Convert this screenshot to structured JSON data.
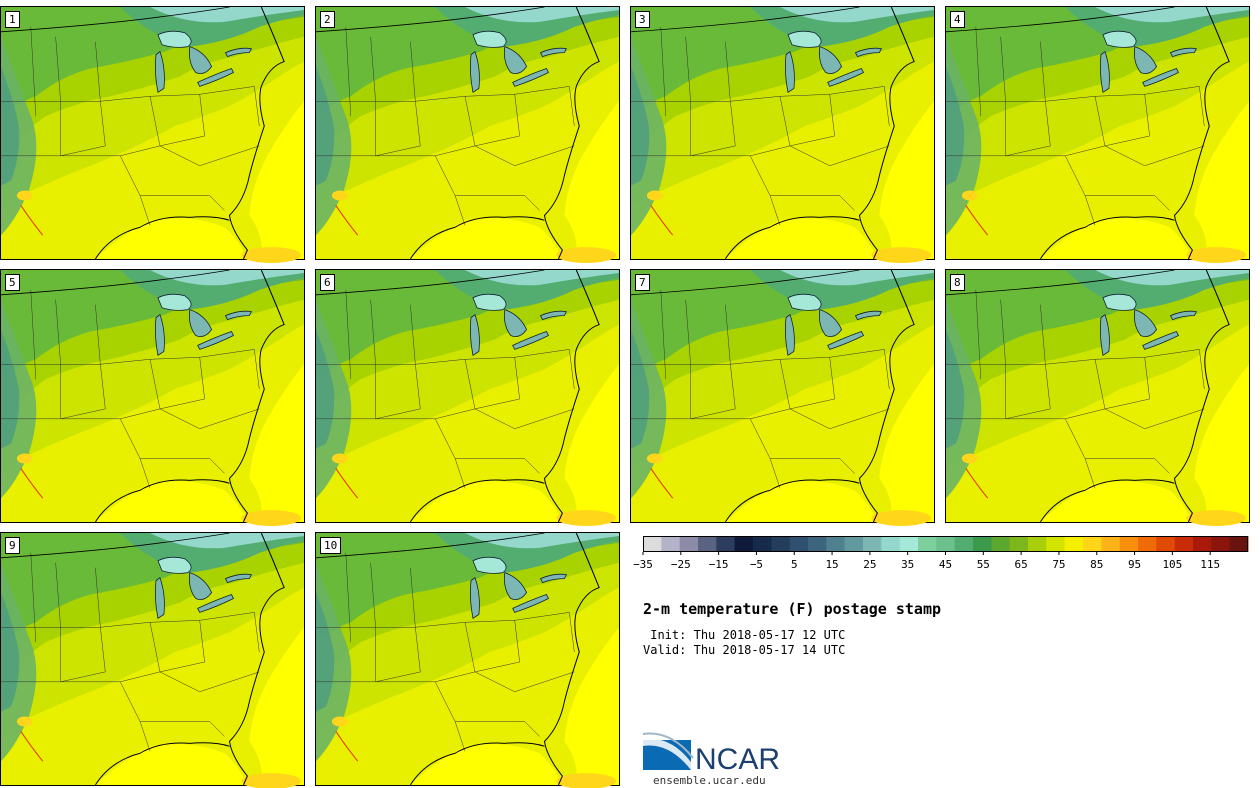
{
  "title": "2-m temperature (F) postage stamp",
  "init_label": " Init:",
  "init_time": "Thu 2018-05-17 12 UTC",
  "valid_label": "Valid:",
  "valid_time": "Thu 2018-05-17 14 UTC",
  "logo_text": "NCAR",
  "logo_url": "ensemble.ucar.edu",
  "members": [
    "1",
    "2",
    "3",
    "4",
    "5",
    "6",
    "7",
    "8",
    "9",
    "10"
  ],
  "colorbar": {
    "tick_labels": [
      "−35",
      "−25",
      "−15",
      "−5",
      "5",
      "15",
      "25",
      "35",
      "45",
      "55",
      "65",
      "75",
      "85",
      "95",
      "105",
      "115"
    ],
    "min": -35,
    "max": 120,
    "step": 5,
    "colors": [
      "#dcdcdc",
      "#b4b4c8",
      "#8c8ca8",
      "#5a6482",
      "#2d3d5d",
      "#0f1a3b",
      "#162a4a",
      "#233d5b",
      "#2f5070",
      "#3d6580",
      "#4f808f",
      "#61999e",
      "#7cb7b4",
      "#94d8cc",
      "#a6e8d8",
      "#7dcf9e",
      "#6cc08c",
      "#54ad70",
      "#3d9a4c",
      "#5ca82e",
      "#7db71c",
      "#a8cf0a",
      "#d2e400",
      "#f5f000",
      "#ffd61a",
      "#ffb31a",
      "#f98f0e",
      "#ef6b08",
      "#e04a07",
      "#c92d08",
      "#a91a0b",
      "#8a150d",
      "#6a1410"
    ]
  }
}
